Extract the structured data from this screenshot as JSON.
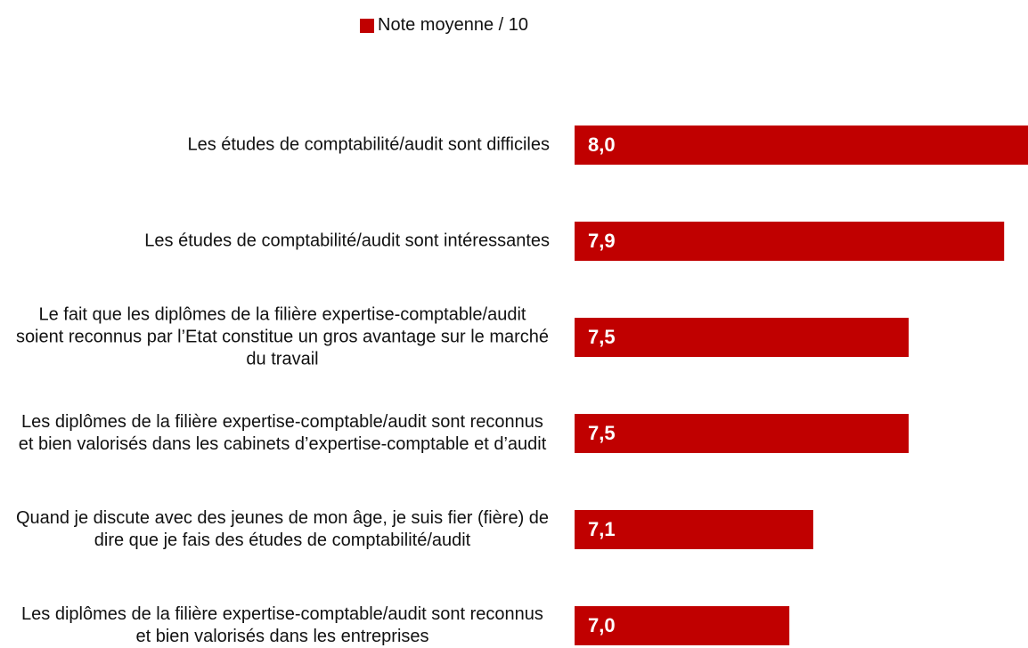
{
  "chart_data": {
    "type": "bar",
    "orientation": "horizontal",
    "categories": [
      "Les études de comptabilité/audit sont difficiles",
      "Les études de comptabilité/audit sont intéressantes",
      "Le fait que les diplômes de la filière expertise-comptable/audit soient reconnus par l’Etat constitue un gros avantage sur le marché du travail",
      "Les diplômes de la filière expertise-comptable/audit sont reconnus et bien valorisés dans les cabinets d’expertise-comptable et d’audit",
      "Quand je discute avec des jeunes de mon âge, je suis fier (fière) de dire que je fais des études de comptabilité/audit",
      "Les diplômes de la filière expertise-comptable/audit sont reconnus et bien valorisés dans les entreprises"
    ],
    "series": [
      {
        "name": "Note moyenne / 10",
        "color": "#c00000",
        "values": [
          8.0,
          7.9,
          7.5,
          7.5,
          7.1,
          7.0
        ],
        "value_labels": [
          "8,0",
          "7,9",
          "7,5",
          "7,5",
          "7,1",
          "7,0"
        ]
      }
    ],
    "xlim": [
      6.1,
      8.0
    ],
    "legend": "top"
  }
}
